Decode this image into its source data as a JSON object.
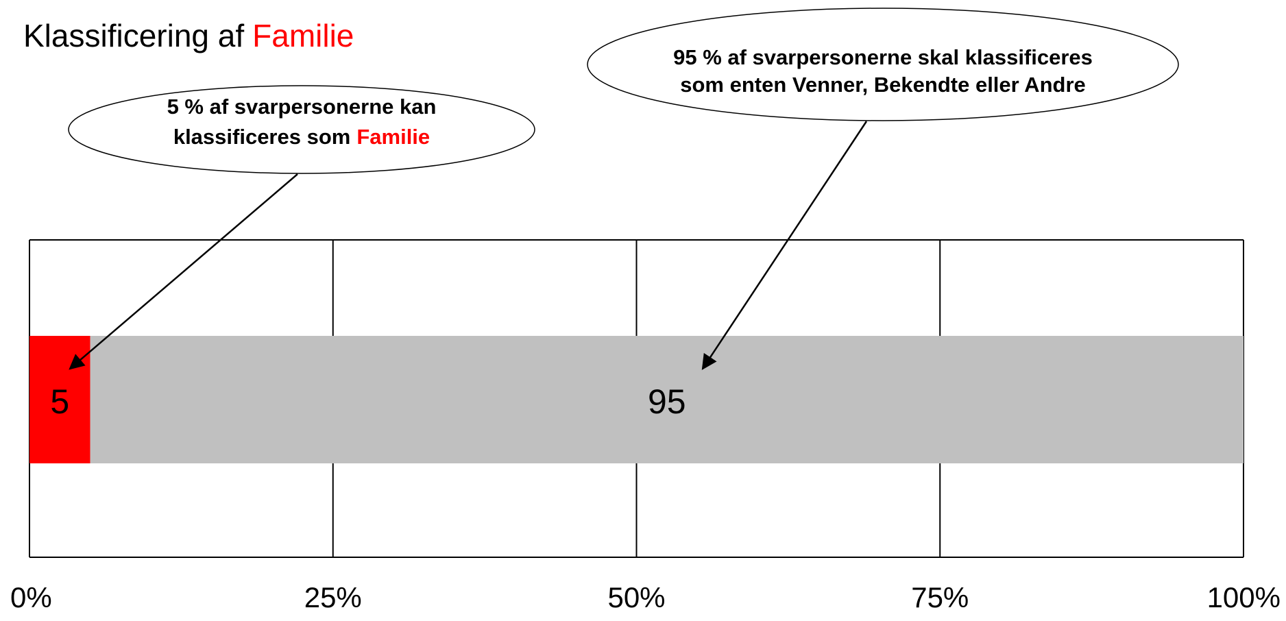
{
  "chart_data": {
    "type": "stacked_bar_horizontal",
    "title_parts": [
      "Klassificering af",
      "Familie"
    ],
    "annotations": [
      {
        "lines": [
          "5 %  af svarpersonerne kan",
          "klassificeres som"
        ],
        "highlight": "Familie"
      },
      {
        "lines": [
          "95 % af svarpersonerne skal klassificeres",
          "som enten Venner, Bekendte eller Andre"
        ]
      }
    ],
    "categories": [
      null
    ],
    "series": [
      {
        "color": "#ff0000",
        "values": [
          5
        ]
      },
      {
        "color": "#c0c0c0",
        "values": [
          95
        ]
      }
    ],
    "xlim": [
      0,
      100
    ],
    "xticks": [
      {
        "value": 0,
        "label": "0%"
      },
      {
        "value": 25,
        "label": "25%"
      },
      {
        "value": 50,
        "label": "50%"
      },
      {
        "value": 75,
        "label": "75%"
      },
      {
        "value": 100,
        "label": "100%"
      }
    ],
    "grid": true,
    "highlight_color": "#ff0000"
  }
}
